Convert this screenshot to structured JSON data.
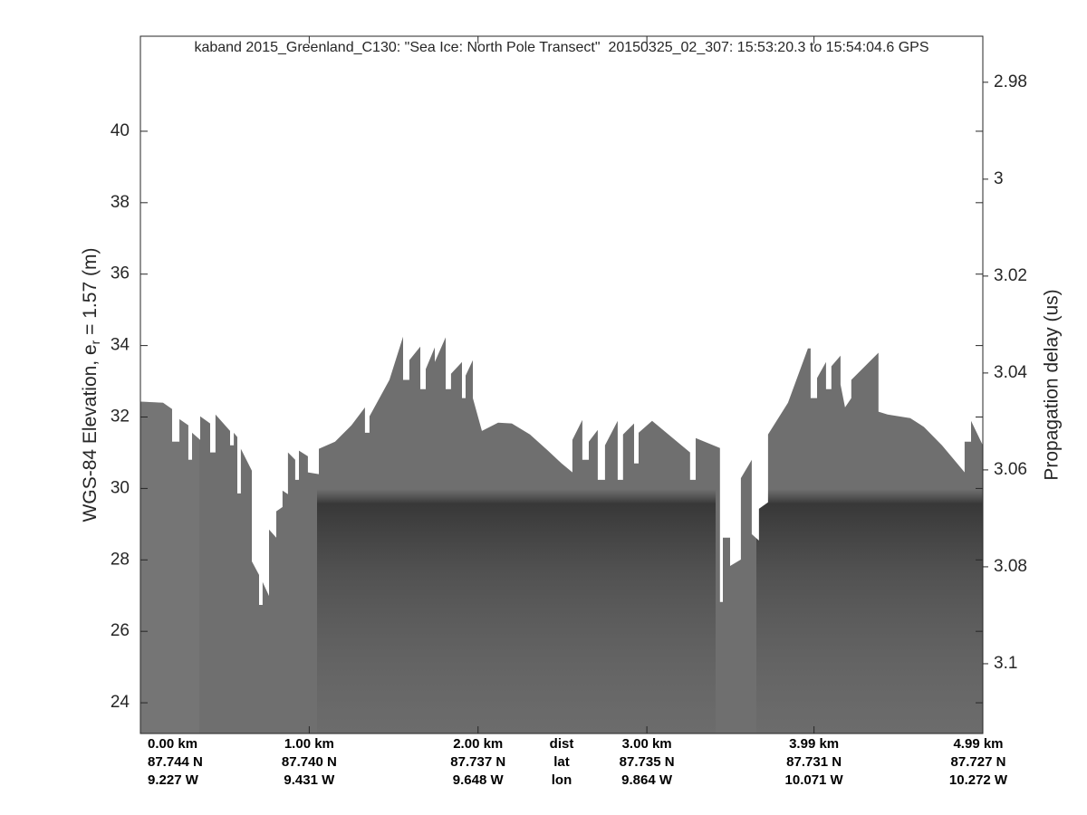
{
  "chart_data": {
    "type": "echogram",
    "title": "kaband 2015_Greenland_C130: \"Sea Ice: North Pole Transect\"  20150325_02_307: 15:53:20.3 to 15:54:04.6 GPS",
    "ylabel": "WGS-84 Elevation, e",
    "ylabel_sub": "r",
    "ylabel_rest": " = 1.57 (m)",
    "y2label": "Propagation delay (us)",
    "xlim": [
      0,
      4.99
    ],
    "ylim": [
      23.14,
      42.66
    ],
    "yticks": [
      24,
      26,
      28,
      30,
      32,
      34,
      36,
      38,
      40
    ],
    "y2lim": [
      2.9705,
      3.1144
    ],
    "y2reverse": true,
    "y2ticks": [
      2.98,
      3,
      3.02,
      3.04,
      3.06,
      3.08,
      3.1
    ],
    "xticks": [
      {
        "value": 0,
        "label": "0.00 km"
      },
      {
        "value": 1.0,
        "label": "1.00 km"
      },
      {
        "value": 2.0,
        "label": "2.00 km"
      },
      {
        "value": 3.0,
        "label": "3.00 km"
      },
      {
        "value": 3.99,
        "label": "3.99 km"
      },
      {
        "value": 4.99,
        "label": "4.99 km"
      }
    ],
    "xrow_labels": [
      "dist",
      "lat",
      "lon"
    ],
    "lat": [
      "87.744 N",
      "87.740 N",
      "87.737 N",
      "87.735 N",
      "87.731 N",
      "87.727 N"
    ],
    "lon": [
      "9.227 W",
      "9.431 W",
      "9.648 W",
      "9.864 W",
      "10.071 W",
      "10.272 W"
    ],
    "color": "#6f6f6f",
    "x": [
      0,
      0.134,
      0.188,
      0.188,
      0.231,
      0.231,
      0.284,
      0.284,
      0.306,
      0.306,
      0.354,
      0.354,
      0.413,
      0.413,
      0.445,
      0.445,
      0.531,
      0.531,
      0.553,
      0.553,
      0.574,
      0.574,
      0.595,
      0.595,
      0.66,
      0.66,
      0.703,
      0.703,
      0.724,
      0.724,
      0.762,
      0.762,
      0.805,
      0.805,
      0.842,
      0.842,
      0.874,
      0.874,
      0.917,
      0.917,
      0.939,
      0.939,
      0.992,
      0.992,
      1.057,
      1.057,
      1.153,
      1.25,
      1.33,
      1.33,
      1.357,
      1.357,
      1.475,
      1.556,
      1.556,
      1.593,
      1.593,
      1.658,
      1.658,
      1.69,
      1.69,
      1.744,
      1.744,
      1.808,
      1.808,
      1.84,
      1.84,
      1.905,
      1.905,
      1.926,
      1.926,
      1.969,
      1.969,
      2.023,
      2.119,
      2.2,
      2.307,
      2.414,
      2.495,
      2.559,
      2.559,
      2.618,
      2.618,
      2.656,
      2.656,
      2.709,
      2.709,
      2.752,
      2.752,
      2.827,
      2.827,
      2.859,
      2.859,
      2.924,
      2.924,
      2.951,
      2.951,
      3.031,
      3.192,
      3.256,
      3.256,
      3.289,
      3.289,
      3.433,
      3.433,
      3.45,
      3.45,
      3.493,
      3.493,
      3.557,
      3.557,
      3.621,
      3.621,
      3.664,
      3.664,
      3.718,
      3.718,
      3.836,
      3.954,
      3.97,
      3.97,
      4.008,
      4.008,
      4.061,
      4.061,
      4.093,
      4.093,
      4.147,
      4.147,
      4.174,
      4.211,
      4.211,
      4.372,
      4.372,
      4.426,
      4.56,
      4.641,
      4.748,
      4.882,
      4.882,
      4.92,
      4.92,
      4.99
    ],
    "values": [
      32.43,
      32.4,
      32.22,
      31.31,
      31.31,
      31.94,
      31.77,
      30.8,
      30.8,
      31.56,
      31.36,
      32.02,
      31.82,
      31.01,
      31.01,
      32.07,
      31.61,
      31.21,
      31.21,
      31.56,
      31.44,
      29.86,
      29.86,
      31.11,
      30.5,
      27.96,
      27.58,
      26.74,
      26.74,
      27.38,
      26.99,
      28.85,
      28.62,
      29.36,
      29.48,
      29.94,
      29.84,
      31.01,
      30.8,
      30.24,
      30.24,
      31.06,
      30.9,
      30.45,
      30.4,
      31.11,
      31.31,
      31.77,
      32.27,
      31.56,
      31.56,
      32.02,
      33.04,
      34.25,
      33.04,
      33.04,
      33.59,
      33.97,
      32.78,
      32.78,
      33.34,
      33.95,
      33.54,
      34.23,
      32.78,
      32.78,
      33.21,
      33.54,
      32.53,
      32.53,
      33.16,
      33.59,
      32.53,
      31.61,
      31.84,
      31.82,
      31.51,
      31.06,
      30.7,
      30.45,
      31.36,
      31.92,
      30.8,
      30.8,
      31.31,
      31.64,
      30.24,
      30.24,
      31.21,
      31.89,
      30.24,
      30.24,
      31.51,
      31.82,
      30.7,
      30.7,
      31.56,
      31.89,
      31.26,
      31.01,
      30.24,
      30.24,
      31.41,
      31.13,
      26.82,
      26.82,
      28.62,
      28.62,
      27.83,
      28.01,
      30.29,
      30.8,
      28.72,
      28.54,
      29.43,
      29.61,
      31.51,
      32.4,
      33.92,
      33.92,
      32.53,
      32.53,
      33.09,
      33.54,
      32.78,
      32.78,
      33.42,
      33.72,
      32.91,
      32.27,
      32.53,
      33.04,
      33.8,
      32.15,
      32.07,
      31.97,
      31.72,
      31.21,
      30.45,
      31.31,
      31.31,
      31.89,
      31.21
    ]
  }
}
